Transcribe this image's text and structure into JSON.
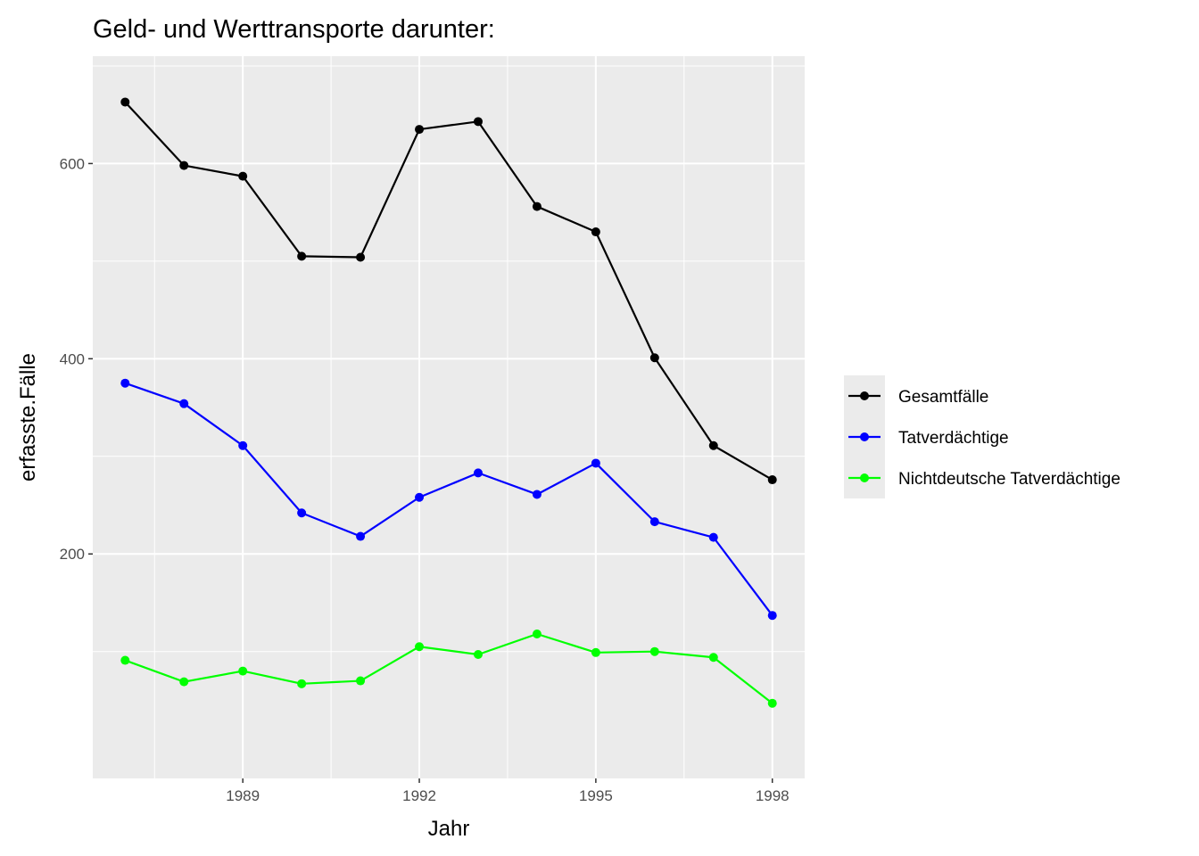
{
  "chart_data": {
    "type": "line",
    "title": "Geld- und Werttransporte darunter:",
    "xlabel": "Jahr",
    "ylabel": "erfasste.Fälle",
    "x": [
      1987,
      1988,
      1989,
      1990,
      1991,
      1992,
      1993,
      1994,
      1995,
      1996,
      1997,
      1998
    ],
    "xlim": [
      1986.45,
      1998.55
    ],
    "ylim": [
      -30,
      710
    ],
    "x_ticks": [
      1989,
      1992,
      1995,
      1998
    ],
    "x_tick_labels": [
      "1989",
      "1992",
      "1995",
      "1998"
    ],
    "y_ticks": [
      200,
      400,
      600
    ],
    "y_tick_labels": [
      "200",
      "400",
      "600"
    ],
    "grid": true,
    "legend_position": "right",
    "series": [
      {
        "name": "Gesamtfälle",
        "color": "#000000",
        "values": [
          663,
          598,
          587,
          505,
          504,
          635,
          643,
          556,
          530,
          401,
          311,
          276
        ]
      },
      {
        "name": "Tatverdächtige",
        "color": "#0000ff",
        "values": [
          375,
          354,
          311,
          242,
          218,
          258,
          283,
          261,
          293,
          233,
          217,
          137
        ]
      },
      {
        "name": "Nichtdeutsche Tatverdächtige",
        "color": "#00ff00",
        "values": [
          91,
          69,
          80,
          67,
          70,
          105,
          97,
          118,
          99,
          100,
          94,
          47
        ]
      }
    ]
  }
}
